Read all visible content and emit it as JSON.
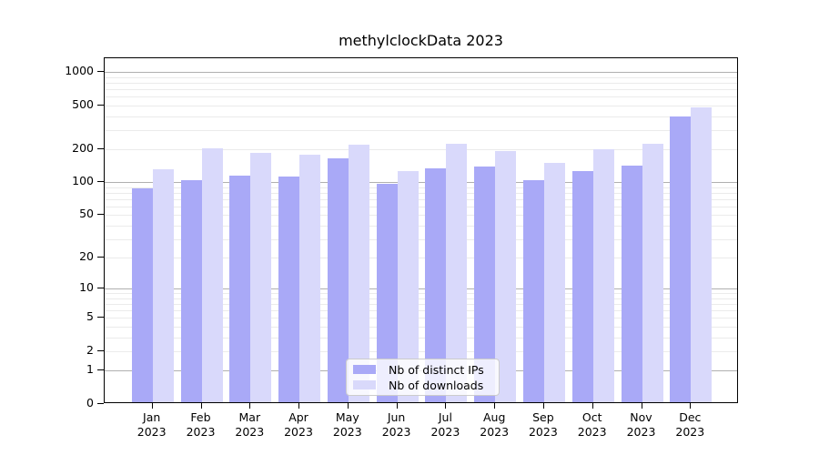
{
  "chart_data": {
    "type": "bar",
    "title": "methylclockData 2023",
    "categories": [
      {
        "month": "Jan",
        "year": "2023"
      },
      {
        "month": "Feb",
        "year": "2023"
      },
      {
        "month": "Mar",
        "year": "2023"
      },
      {
        "month": "Apr",
        "year": "2023"
      },
      {
        "month": "May",
        "year": "2023"
      },
      {
        "month": "Jun",
        "year": "2023"
      },
      {
        "month": "Jul",
        "year": "2023"
      },
      {
        "month": "Aug",
        "year": "2023"
      },
      {
        "month": "Sep",
        "year": "2023"
      },
      {
        "month": "Oct",
        "year": "2023"
      },
      {
        "month": "Nov",
        "year": "2023"
      },
      {
        "month": "Dec",
        "year": "2023"
      }
    ],
    "series": [
      {
        "name": "Nb of distinct IPs",
        "color": "#a9a9f7",
        "values": [
          84,
          100,
          110,
          108,
          160,
          93,
          129,
          135,
          100,
          122,
          137,
          380
        ]
      },
      {
        "name": "Nb of downloads",
        "color": "#d9d9fb",
        "values": [
          126,
          196,
          177,
          172,
          212,
          123,
          218,
          186,
          145,
          193,
          216,
          460
        ]
      }
    ],
    "yscale": "log1p",
    "ylim": [
      0,
      1335
    ],
    "yticks": [
      1000,
      500,
      200,
      100,
      50,
      20,
      10,
      5,
      2,
      1,
      0
    ],
    "major_gridlines": [
      1,
      10,
      100,
      1000
    ],
    "minor_gridlines": [
      2,
      3,
      4,
      5,
      6,
      7,
      8,
      9,
      20,
      30,
      40,
      50,
      60,
      70,
      80,
      90,
      200,
      300,
      400,
      500,
      600,
      700,
      800,
      900
    ],
    "grid": true,
    "legend_position": "lower-center",
    "xlabel": "",
    "ylabel": ""
  },
  "colors": {
    "background": "#ffffff",
    "axis": "#000000",
    "grid_major": "#b0b0b0",
    "grid_minor": "#ebebeb",
    "bar_ips": "#a9a9f7",
    "bar_downloads": "#d9d9fb"
  }
}
